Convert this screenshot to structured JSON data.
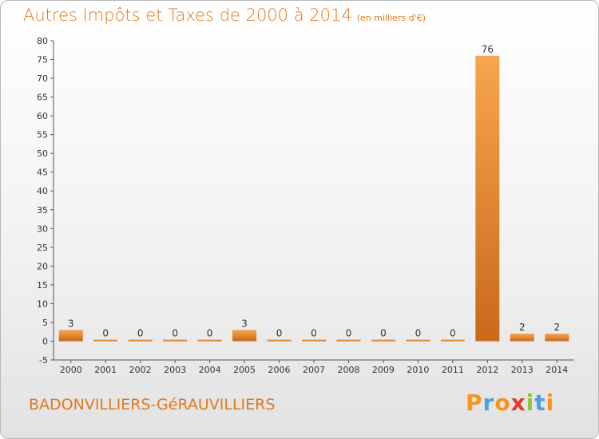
{
  "header": {
    "title": "Autres Impôts et Taxes de 2000 à 2014",
    "unit": "(en milliers d'€)"
  },
  "footer": {
    "city": "BADONVILLIERS-GéRAUVILLIERS",
    "logo": "Proxiti",
    "logo_colors": [
      "#f7941d",
      "#4aa3df",
      "#f7941d",
      "#e03c31",
      "#8dc63f",
      "#4aa3df",
      "#f7941d"
    ]
  },
  "colors": {
    "bar_light": "#f7a54f",
    "bar_dark": "#c9691a",
    "text_accent": "#e07a1f"
  },
  "chart_data": {
    "type": "bar",
    "categories": [
      "2000",
      "2001",
      "2002",
      "2003",
      "2004",
      "2005",
      "2006",
      "2007",
      "2008",
      "2009",
      "2010",
      "2011",
      "2012",
      "2013",
      "2014"
    ],
    "values": [
      3,
      0,
      0,
      0,
      0,
      3,
      0,
      0,
      0,
      0,
      0,
      0,
      76,
      2,
      2
    ],
    "data_labels": [
      "3",
      "0",
      "0",
      "0",
      "0",
      "3",
      "0",
      "0",
      "0",
      "0",
      "0",
      "0",
      "76",
      "2",
      "2"
    ],
    "y_ticks": [
      -5,
      0,
      5,
      10,
      15,
      20,
      25,
      30,
      35,
      40,
      45,
      50,
      55,
      60,
      65,
      70,
      75,
      80
    ],
    "ylim": [
      -5,
      80
    ],
    "title": "Autres Impôts et Taxes de 2000 à 2014",
    "xlabel": "",
    "ylabel": "",
    "grid": false
  }
}
